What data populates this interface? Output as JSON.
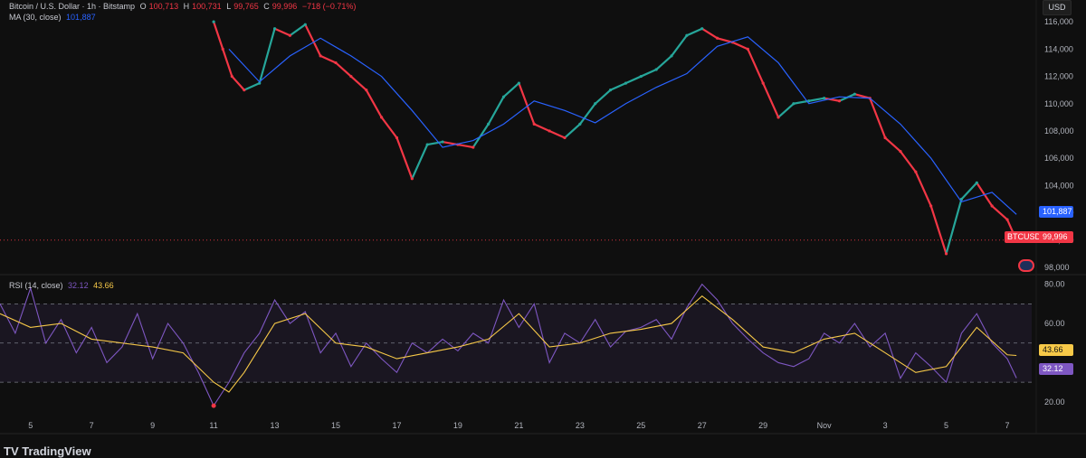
{
  "header": {
    "symbol_title": "Bitcoin / U.S. Dollar · 1h · Bitstamp",
    "o_label": "O",
    "o_value": "100,713",
    "h_label": "H",
    "h_value": "100,731",
    "l_label": "L",
    "l_value": "99,765",
    "c_label": "C",
    "c_value": "99,996",
    "change": "−718 (−0.71%)",
    "ma_label": "MA (30, close)",
    "ma_value": "101,887",
    "currency": "USD"
  },
  "rsi_legend": {
    "label": "RSI (14, close)",
    "rsi_value": "32.12",
    "ma_value": "43.66"
  },
  "tags": {
    "symbol": "BTCUSD",
    "close": "99,996",
    "ma": "101,887",
    "rsi": "32.12",
    "rsi_ma": "43.66"
  },
  "footer": {
    "logo_text": "TV TradingView"
  },
  "colors": {
    "up": "#26a69a",
    "down": "#f23645",
    "ma": "#2962ff",
    "rsi": "#7e57c2",
    "rsi_ma": "#f7c948",
    "bg": "#0f0f0f"
  },
  "chart_data": [
    {
      "type": "line",
      "title": "Bitcoin / U.S. Dollar · 1h · Bitstamp",
      "y_ticks": [
        98000,
        100000,
        102000,
        104000,
        106000,
        108000,
        110000,
        112000,
        114000,
        116000
      ],
      "y_tick_labels": [
        "98,000",
        "100,000",
        "102,000",
        "104,000",
        "106,000",
        "108,000",
        "110,000",
        "112,000",
        "114,000",
        "116,000"
      ],
      "ylim": [
        97600,
        117600
      ],
      "x_tick_labels": [
        "5",
        "7",
        "9",
        "11",
        "13",
        "15",
        "17",
        "19",
        "21",
        "23",
        "25",
        "27",
        "29",
        "Nov",
        "3",
        "5",
        "7"
      ],
      "series": [
        {
          "name": "BTCUSD",
          "x": [
            11,
            11.3,
            11.6,
            12,
            12.5,
            13,
            13.5,
            14,
            14.5,
            15,
            15.5,
            16,
            16.5,
            17,
            17.5,
            18,
            18.5,
            19,
            19.5,
            20,
            20.5,
            21,
            21.5,
            22,
            22.5,
            23,
            23.5,
            24,
            24.5,
            25,
            25.5,
            26,
            26.5,
            27,
            27.5,
            28,
            28.5,
            29,
            29.5,
            30,
            30.5,
            31,
            31.5,
            32,
            32.5,
            33,
            33.5,
            34,
            34.5,
            35,
            35.5,
            36,
            36.5,
            37,
            37.3
          ],
          "values": [
            116000,
            114000,
            112000,
            111000,
            111500,
            115500,
            115000,
            115800,
            113500,
            113000,
            112000,
            111000,
            109000,
            107500,
            104500,
            107000,
            107200,
            107000,
            106800,
            108500,
            110500,
            111500,
            108500,
            108000,
            107500,
            108500,
            110000,
            111000,
            111500,
            112000,
            112500,
            113500,
            115000,
            115500,
            114800,
            114500,
            114000,
            111500,
            109000,
            110000,
            110200,
            110400,
            110200,
            110700,
            110400,
            107500,
            106500,
            105000,
            102500,
            99000,
            103000,
            104200,
            102500,
            101500,
            99996
          ]
        },
        {
          "name": "MA (30, close)",
          "x": [
            11.5,
            12.5,
            13.5,
            14.5,
            15.5,
            16.5,
            17.5,
            18.5,
            19.5,
            20.5,
            21.5,
            22.5,
            23.5,
            24.5,
            25.5,
            26.5,
            27.5,
            28.5,
            29.5,
            30.5,
            31.5,
            32.5,
            33.5,
            34.5,
            35.5,
            36.5,
            37.3
          ],
          "values": [
            114000,
            111600,
            113500,
            114800,
            113500,
            112000,
            109500,
            106800,
            107300,
            108500,
            110200,
            109500,
            108600,
            110000,
            111200,
            112200,
            114200,
            114900,
            113000,
            110000,
            110500,
            110400,
            108500,
            106000,
            102800,
            103500,
            101887
          ]
        }
      ]
    },
    {
      "type": "line",
      "title": "RSI (14, close)",
      "y_ticks": [
        20,
        40,
        60,
        80
      ],
      "y_tick_labels": [
        "20.00",
        "",
        "60.00",
        "80.00"
      ],
      "ylim": [
        13,
        84
      ],
      "bands": [
        30,
        50,
        70
      ],
      "x_tick_labels": [
        "5",
        "7",
        "9",
        "11",
        "13",
        "15",
        "17",
        "19",
        "21",
        "23",
        "25",
        "27",
        "29",
        "Nov",
        "3",
        "5",
        "7"
      ],
      "series": [
        {
          "name": "RSI",
          "x": [
            4,
            4.5,
            5,
            5.5,
            6,
            6.5,
            7,
            7.5,
            8,
            8.5,
            9,
            9.5,
            10,
            10.5,
            11,
            11.5,
            12,
            12.5,
            13,
            13.5,
            14,
            14.5,
            15,
            15.5,
            16,
            16.5,
            17,
            17.5,
            18,
            18.5,
            19,
            19.5,
            20,
            20.5,
            21,
            21.5,
            22,
            22.5,
            23,
            23.5,
            24,
            24.5,
            25,
            25.5,
            26,
            26.5,
            27,
            27.5,
            28,
            28.5,
            29,
            29.5,
            30,
            30.5,
            31,
            31.5,
            32,
            32.5,
            33,
            33.5,
            34,
            34.5,
            35,
            35.5,
            36,
            36.5,
            37,
            37.3
          ],
          "values": [
            70,
            55,
            78,
            50,
            62,
            45,
            58,
            40,
            48,
            65,
            42,
            60,
            50,
            35,
            18,
            30,
            45,
            55,
            72,
            60,
            66,
            45,
            55,
            38,
            50,
            42,
            35,
            50,
            45,
            52,
            46,
            55,
            50,
            72,
            58,
            70,
            40,
            55,
            50,
            62,
            48,
            56,
            58,
            62,
            52,
            68,
            80,
            72,
            60,
            52,
            45,
            40,
            38,
            42,
            55,
            50,
            60,
            48,
            55,
            32,
            45,
            38,
            30,
            55,
            65,
            50,
            42,
            32.12
          ]
        },
        {
          "name": "RSI MA",
          "x": [
            4,
            5,
            6,
            7,
            8,
            9,
            10,
            11,
            11.5,
            12,
            13,
            14,
            15,
            16,
            17,
            18,
            19,
            20,
            21,
            22,
            23,
            24,
            25,
            26,
            27,
            28,
            29,
            30,
            31,
            32,
            33,
            34,
            35,
            36,
            37,
            37.3
          ],
          "values": [
            65,
            58,
            60,
            52,
            50,
            48,
            45,
            30,
            25,
            35,
            60,
            65,
            50,
            48,
            42,
            45,
            48,
            52,
            65,
            48,
            50,
            55,
            57,
            60,
            74,
            62,
            48,
            45,
            52,
            55,
            45,
            35,
            38,
            58,
            44,
            43.66
          ]
        }
      ]
    }
  ]
}
